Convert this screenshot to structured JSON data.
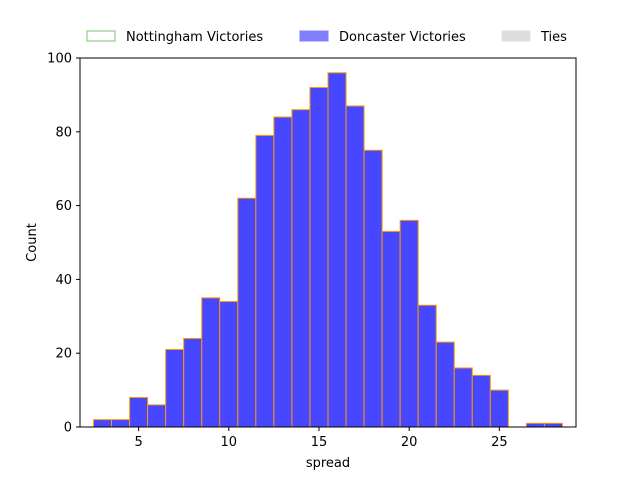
{
  "chart_data": {
    "type": "bar",
    "title": "",
    "xlabel": "spread",
    "ylabel": "Count",
    "xlim": [
      1.75,
      29.25
    ],
    "ylim": [
      0,
      100
    ],
    "xticks": [
      5,
      10,
      15,
      20,
      25
    ],
    "yticks": [
      0,
      20,
      40,
      60,
      80,
      100
    ],
    "grid": false,
    "legend_position": "top",
    "legend": [
      {
        "name": "Nottingham Victories",
        "fill": "none",
        "edge": "#7ac67a"
      },
      {
        "name": "Doncaster Victories",
        "fill": "#8080ff",
        "edge": "#8080ff"
      },
      {
        "name": "Ties",
        "fill": "#dddddd",
        "edge": "#dddddd"
      }
    ],
    "series": [
      {
        "name": "Doncaster Victories",
        "fill": "#0000ff",
        "fill_opacity": 0.72,
        "edge": "#ff9900",
        "bins": [
          {
            "x0": 2.5,
            "x1": 3.5,
            "count": 2
          },
          {
            "x0": 3.5,
            "x1": 4.5,
            "count": 2
          },
          {
            "x0": 4.5,
            "x1": 5.5,
            "count": 8
          },
          {
            "x0": 5.5,
            "x1": 6.5,
            "count": 6
          },
          {
            "x0": 6.5,
            "x1": 7.5,
            "count": 21
          },
          {
            "x0": 7.5,
            "x1": 8.5,
            "count": 24
          },
          {
            "x0": 8.5,
            "x1": 9.5,
            "count": 35
          },
          {
            "x0": 9.5,
            "x1": 10.5,
            "count": 34
          },
          {
            "x0": 10.5,
            "x1": 11.5,
            "count": 62
          },
          {
            "x0": 11.5,
            "x1": 12.5,
            "count": 79
          },
          {
            "x0": 12.5,
            "x1": 13.5,
            "count": 84
          },
          {
            "x0": 13.5,
            "x1": 14.5,
            "count": 86
          },
          {
            "x0": 14.5,
            "x1": 15.5,
            "count": 92
          },
          {
            "x0": 15.5,
            "x1": 16.5,
            "count": 96
          },
          {
            "x0": 16.5,
            "x1": 17.5,
            "count": 87
          },
          {
            "x0": 17.5,
            "x1": 18.5,
            "count": 75
          },
          {
            "x0": 18.5,
            "x1": 19.5,
            "count": 53
          },
          {
            "x0": 19.5,
            "x1": 20.5,
            "count": 56
          },
          {
            "x0": 20.5,
            "x1": 21.5,
            "count": 33
          },
          {
            "x0": 21.5,
            "x1": 22.5,
            "count": 23
          },
          {
            "x0": 22.5,
            "x1": 23.5,
            "count": 16
          },
          {
            "x0": 23.5,
            "x1": 24.5,
            "count": 14
          },
          {
            "x0": 24.5,
            "x1": 25.5,
            "count": 10
          },
          {
            "x0": 25.5,
            "x1": 26.5,
            "count": 0
          },
          {
            "x0": 26.5,
            "x1": 27.5,
            "count": 1
          },
          {
            "x0": 27.5,
            "x1": 28.5,
            "count": 1
          }
        ]
      }
    ]
  }
}
